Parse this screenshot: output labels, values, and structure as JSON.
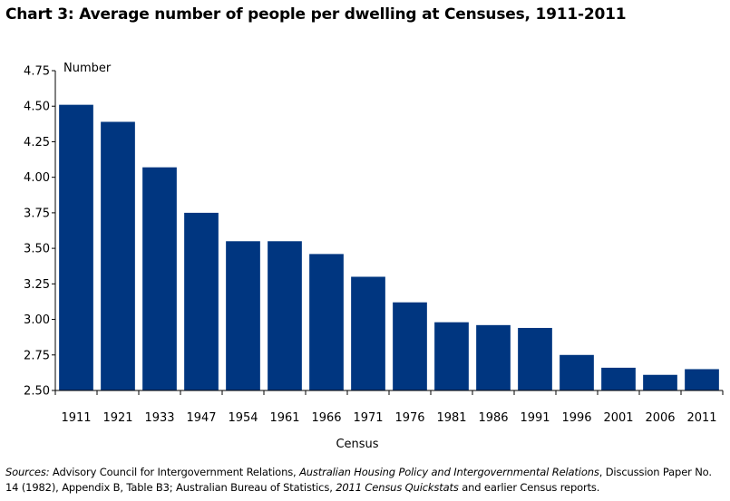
{
  "title": "Chart 3: Average number of people per dwelling at Censuses, 1911-2011",
  "chart_data": {
    "type": "bar",
    "title": "Chart 3: Average number of people per dwelling at Censuses, 1911-2011",
    "xlabel": "Census",
    "ylabel": "Number",
    "ylim": [
      2.5,
      4.75
    ],
    "yticks": [
      "2.50",
      "2.75",
      "3.00",
      "3.25",
      "3.50",
      "3.75",
      "4.00",
      "4.25",
      "4.50",
      "4.75"
    ],
    "categories": [
      "1911",
      "1921",
      "1933",
      "1947",
      "1954",
      "1961",
      "1966",
      "1971",
      "1976",
      "1981",
      "1986",
      "1991",
      "1996",
      "2001",
      "2006",
      "2011"
    ],
    "values": [
      4.51,
      4.39,
      4.07,
      3.75,
      3.55,
      3.55,
      3.46,
      3.3,
      3.12,
      2.98,
      2.96,
      2.94,
      2.75,
      2.66,
      2.61,
      2.65
    ],
    "bar_color": "#003680",
    "grid": false
  },
  "sources": {
    "lead": "Sources:",
    "part1": " Advisory Council for Intergovernment Relations, ",
    "title1": "Australian Housing Policy and Intergovernmental Relations",
    "part2": ", Discussion Paper No. 14 (1982), Appendix B, Table B3; Australian Bureau of Statistics, ",
    "title2": "2011 Census Quickstats",
    "part3": " and earlier Census reports."
  }
}
